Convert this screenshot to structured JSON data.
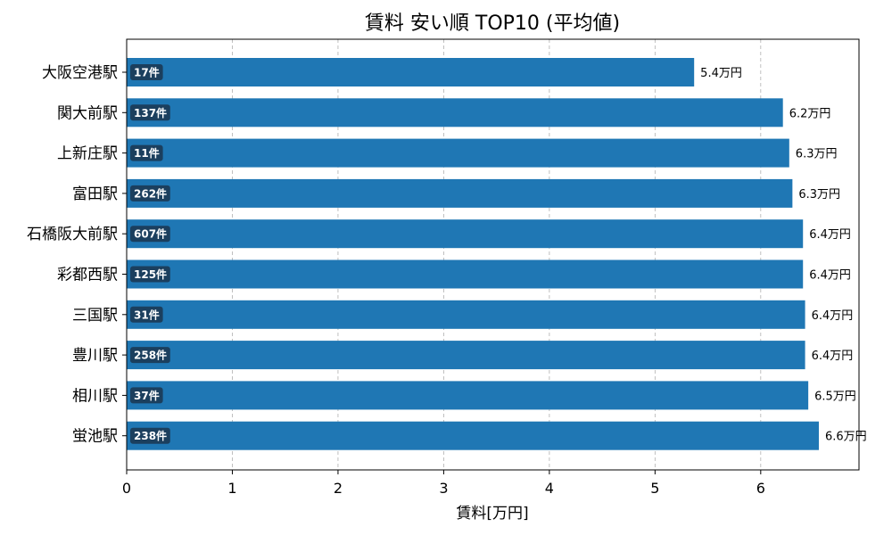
{
  "chart_data": {
    "type": "bar",
    "orientation": "horizontal",
    "title": "賃料 安い順 TOP10 (平均値)",
    "xlabel": "賃料[万円]",
    "ylabel": "",
    "xlim": [
      0,
      6.93
    ],
    "xticks": [
      "0",
      "1",
      "2",
      "3",
      "4",
      "5",
      "6"
    ],
    "grid": "x-dashed",
    "bar_color": "#1f77b4",
    "badge_color": "#1b3f5e",
    "value_suffix": "万円",
    "count_suffix": "件",
    "categories": [
      "大阪空港駅",
      "関大前駅",
      "上新庄駅",
      "富田駅",
      "石橋阪大前駅",
      "彩都西駅",
      "三国駅",
      "豊川駅",
      "相川駅",
      "蛍池駅"
    ],
    "values": [
      5.37,
      6.21,
      6.27,
      6.3,
      6.4,
      6.4,
      6.42,
      6.42,
      6.45,
      6.55
    ],
    "value_labels": [
      "5.4万円",
      "6.2万円",
      "6.3万円",
      "6.3万円",
      "6.4万円",
      "6.4万円",
      "6.4万円",
      "6.4万円",
      "6.5万円",
      "6.6万円"
    ],
    "counts": [
      "17件",
      "137件",
      "11件",
      "262件",
      "607件",
      "125件",
      "31件",
      "258件",
      "37件",
      "238件"
    ]
  }
}
